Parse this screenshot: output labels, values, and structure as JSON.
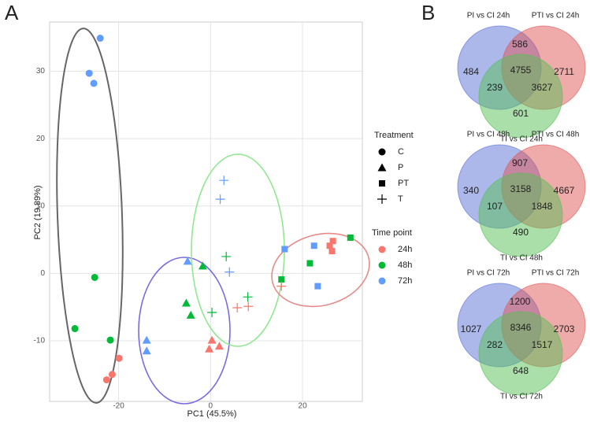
{
  "panel_labels": [
    "A",
    "B"
  ],
  "chart_data": [
    {
      "type": "scatter",
      "x_label": "PC1 (45.5%)",
      "y_label": "PC2 (19.89%)",
      "xlim": [
        -35,
        33
      ],
      "ylim": [
        -19,
        37.3
      ],
      "xticks": [
        -20,
        0,
        20
      ],
      "yticks": [
        -10,
        0,
        10,
        20,
        30
      ],
      "grid": true,
      "legend": {
        "shape_title": "Treatment",
        "color_title": "Time point"
      },
      "treatments": [
        {
          "name": "C",
          "shape": "circle"
        },
        {
          "name": "P",
          "shape": "triangle"
        },
        {
          "name": "PT",
          "shape": "square"
        },
        {
          "name": "T",
          "shape": "cross"
        }
      ],
      "time_points": [
        {
          "name": "24h",
          "color": "#F8766D"
        },
        {
          "name": "48h",
          "color": "#00BA38"
        },
        {
          "name": "72h",
          "color": "#619CFF"
        }
      ],
      "points": [
        {
          "x": -24.0,
          "y": 34.9,
          "treatment": "C",
          "time": "72h"
        },
        {
          "x": -26.4,
          "y": 29.7,
          "treatment": "C",
          "time": "72h"
        },
        {
          "x": -25.4,
          "y": 28.2,
          "treatment": "C",
          "time": "72h"
        },
        {
          "x": -13.9,
          "y": -9.9,
          "treatment": "P",
          "time": "72h"
        },
        {
          "x": -13.9,
          "y": -11.5,
          "treatment": "P",
          "time": "72h"
        },
        {
          "x": -5.0,
          "y": 1.8,
          "treatment": "P",
          "time": "72h"
        },
        {
          "x": 16.1,
          "y": 3.6,
          "treatment": "PT",
          "time": "72h"
        },
        {
          "x": 22.5,
          "y": 4.1,
          "treatment": "PT",
          "time": "72h"
        },
        {
          "x": 23.3,
          "y": -1.9,
          "treatment": "PT",
          "time": "72h"
        },
        {
          "x": 2.9,
          "y": 13.8,
          "treatment": "T",
          "time": "72h"
        },
        {
          "x": 2.1,
          "y": 11.0,
          "treatment": "T",
          "time": "72h"
        },
        {
          "x": 4.1,
          "y": 0.2,
          "treatment": "T",
          "time": "72h"
        },
        {
          "x": -25.2,
          "y": -0.6,
          "treatment": "C",
          "time": "48h"
        },
        {
          "x": -29.5,
          "y": -8.2,
          "treatment": "C",
          "time": "48h"
        },
        {
          "x": -21.8,
          "y": -9.9,
          "treatment": "C",
          "time": "48h"
        },
        {
          "x": -5.3,
          "y": -4.4,
          "treatment": "P",
          "time": "48h"
        },
        {
          "x": -4.3,
          "y": -6.2,
          "treatment": "P",
          "time": "48h"
        },
        {
          "x": -1.7,
          "y": 1.1,
          "treatment": "P",
          "time": "48h"
        },
        {
          "x": 30.4,
          "y": 5.3,
          "treatment": "PT",
          "time": "48h"
        },
        {
          "x": 21.6,
          "y": 1.5,
          "treatment": "PT",
          "time": "48h"
        },
        {
          "x": 15.4,
          "y": -0.9,
          "treatment": "PT",
          "time": "48h"
        },
        {
          "x": 3.4,
          "y": 2.5,
          "treatment": "T",
          "time": "48h"
        },
        {
          "x": 8.1,
          "y": -3.5,
          "treatment": "T",
          "time": "48h"
        },
        {
          "x": 0.3,
          "y": -5.8,
          "treatment": "T",
          "time": "48h"
        },
        {
          "x": -19.9,
          "y": -12.6,
          "treatment": "C",
          "time": "24h"
        },
        {
          "x": -21.4,
          "y": -15.0,
          "treatment": "C",
          "time": "24h"
        },
        {
          "x": -22.6,
          "y": -15.8,
          "treatment": "C",
          "time": "24h"
        },
        {
          "x": 0.3,
          "y": -9.9,
          "treatment": "P",
          "time": "24h"
        },
        {
          "x": 1.9,
          "y": -10.8,
          "treatment": "P",
          "time": "24h"
        },
        {
          "x": -0.3,
          "y": -11.2,
          "treatment": "P",
          "time": "24h"
        },
        {
          "x": 26.6,
          "y": 4.8,
          "treatment": "PT",
          "time": "24h"
        },
        {
          "x": 25.9,
          "y": 4.1,
          "treatment": "PT",
          "time": "24h"
        },
        {
          "x": 26.4,
          "y": 3.3,
          "treatment": "PT",
          "time": "24h"
        },
        {
          "x": 5.8,
          "y": -5.1,
          "treatment": "T",
          "time": "24h"
        },
        {
          "x": 8.2,
          "y": -4.9,
          "treatment": "T",
          "time": "24h"
        },
        {
          "x": 15.4,
          "y": -1.9,
          "treatment": "T",
          "time": "24h"
        }
      ]
    },
    {
      "type": "venn",
      "sets": [
        "PI vs CI 24h",
        "PTI vs CI 24h",
        "TI vs CI 24h"
      ],
      "values": [
        484,
        586,
        2711,
        239,
        4755,
        3627,
        601
      ]
    },
    {
      "type": "venn",
      "sets": [
        "PI vs CI 48h",
        "PTI vs CI 48h",
        "TI vs CI 48h"
      ],
      "values": [
        340,
        907,
        4667,
        107,
        3158,
        1848,
        490
      ]
    },
    {
      "type": "venn",
      "sets": [
        "PI vs CI 72h",
        "PTI vs CI 72h",
        "TI vs CI 72h"
      ],
      "values": [
        1027,
        1200,
        2703,
        282,
        8346,
        1517,
        648
      ]
    }
  ]
}
